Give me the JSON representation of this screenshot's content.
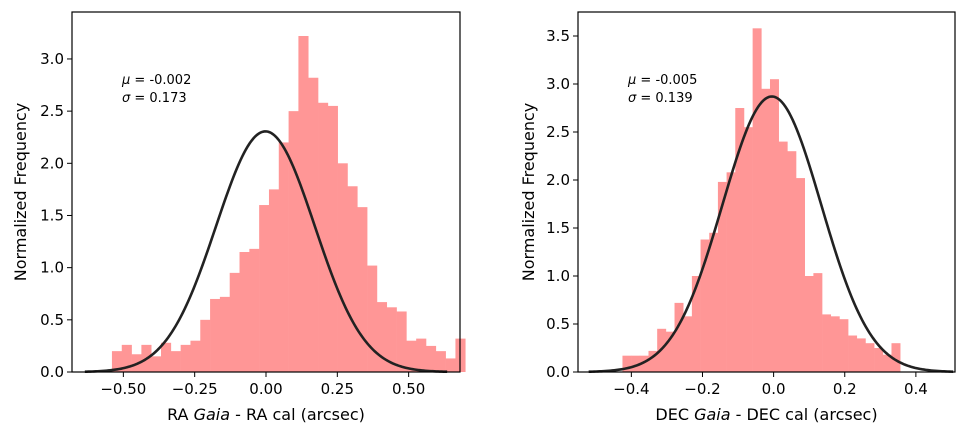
{
  "colors": {
    "hist_fill": "#ff9696",
    "fit_line": "#222222",
    "axis": "#000000"
  },
  "chart_data": [
    {
      "type": "bar",
      "subtype": "histogram with gaussian fit",
      "xlabel_parts": [
        "RA ",
        "Gaia",
        "  - RA cal (arcsec)"
      ],
      "ylabel": "Normalized Frequency",
      "xlim": [
        -0.68,
        0.68
      ],
      "ylim": [
        0.0,
        3.45
      ],
      "xticks": [
        -0.5,
        -0.25,
        0.0,
        0.25,
        0.5
      ],
      "xtick_labels": [
        "−0.50",
        "−0.25",
        "0.00",
        "0.25",
        "0.50"
      ],
      "yticks": [
        0.0,
        0.5,
        1.0,
        1.5,
        2.0,
        2.5,
        3.0
      ],
      "ytick_labels": [
        "0.0",
        "0.5",
        "1.0",
        "1.5",
        "2.0",
        "2.5",
        "3.0"
      ],
      "bin_start": -0.54,
      "bin_width": 0.0344,
      "values": [
        0.2,
        0.26,
        0.17,
        0.26,
        0.15,
        0.28,
        0.2,
        0.26,
        0.3,
        0.5,
        0.7,
        0.72,
        0.95,
        1.15,
        1.18,
        1.6,
        1.75,
        2.2,
        2.5,
        3.22,
        2.82,
        2.58,
        2.55,
        2.0,
        1.78,
        1.58,
        1.02,
        0.67,
        0.62,
        0.58,
        0.3,
        0.32,
        0.25,
        0.2,
        0.13,
        0.32
      ],
      "fit": {
        "mu": -0.002,
        "sigma": 0.173,
        "x_range": [
          -0.635,
          0.635
        ]
      },
      "annotation": {
        "mu_symbol": "μ",
        "mu_text": " = -0.002",
        "sigma_symbol": "σ",
        "sigma_text": " =  0.173"
      }
    },
    {
      "type": "bar",
      "subtype": "histogram with gaussian fit",
      "xlabel_parts": [
        "DEC ",
        "Gaia",
        " - DEC cal (arcsec)"
      ],
      "ylabel": "Normalized Frequency",
      "xlim": [
        -0.55,
        0.51
      ],
      "ylim": [
        0.0,
        3.75
      ],
      "xticks": [
        -0.4,
        -0.2,
        0.0,
        0.2,
        0.4
      ],
      "xtick_labels": [
        "−0.4",
        "−0.2",
        "0.0",
        "0.2",
        "0.4"
      ],
      "yticks": [
        0.0,
        0.5,
        1.0,
        1.5,
        2.0,
        2.5,
        3.0,
        3.5
      ],
      "ytick_labels": [
        "0.0",
        "0.5",
        "1.0",
        "1.5",
        "2.0",
        "2.5",
        "3.0",
        "3.5"
      ],
      "bin_start": -0.425,
      "bin_width": 0.0244,
      "values": [
        0.17,
        0.17,
        0.17,
        0.22,
        0.45,
        0.42,
        0.72,
        0.58,
        1.0,
        1.38,
        1.45,
        1.98,
        2.08,
        2.75,
        2.55,
        3.58,
        2.95,
        3.05,
        2.4,
        2.3,
        2.02,
        1.0,
        1.03,
        0.6,
        0.58,
        0.55,
        0.38,
        0.35,
        0.3,
        0.25,
        0.18,
        0.3
      ],
      "fit": {
        "mu": -0.005,
        "sigma": 0.139,
        "x_range": [
          -0.52,
          0.505
        ]
      },
      "annotation": {
        "mu_symbol": "μ",
        "mu_text": " = -0.005",
        "sigma_symbol": "σ",
        "sigma_text": " =  0.139"
      }
    }
  ]
}
